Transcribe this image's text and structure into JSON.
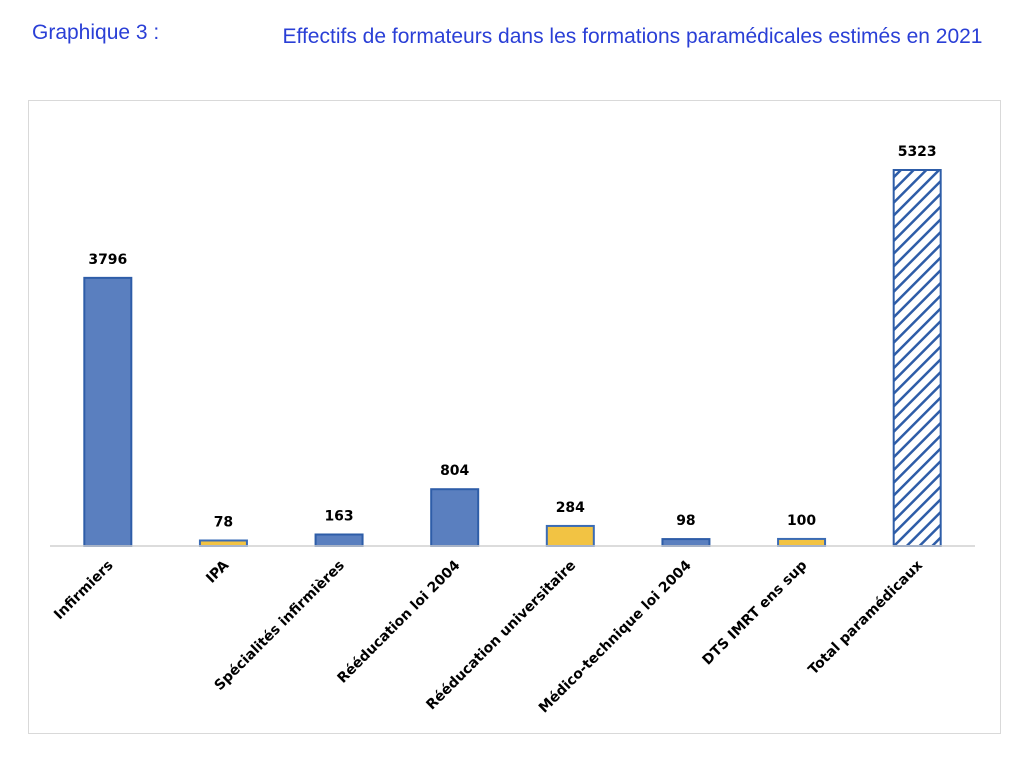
{
  "header": {
    "label": "Graphique 3 :",
    "title": "Effectifs de formateurs dans les formations paramédicales estimés en 2021"
  },
  "chart_data": {
    "type": "bar",
    "title": "Effectifs de formateurs dans les formations paramédicales estimés en 2021",
    "xlabel": "",
    "ylabel": "",
    "categories": [
      "Infirmiers",
      "IPA",
      "Spécialités infirmières",
      "Rééducation loi 2004",
      "Rééducation universitaire",
      "Médico-technique loi 2004",
      "DTS IMRT ens sup",
      "Total paramédicaux"
    ],
    "values": [
      3796,
      78,
      163,
      804,
      284,
      98,
      100,
      5323
    ],
    "bar_styles": [
      "blue",
      "yellow",
      "blue",
      "blue",
      "yellow",
      "blue",
      "yellow",
      "hatched"
    ],
    "colors": {
      "blue": "#5a7fbf",
      "blue_border": "#2e5da8",
      "yellow": "#f2c343",
      "yellow_border": "#3a6bb5",
      "hatch": "#2e5da8",
      "title": "#2a3fd6"
    },
    "ylim": [
      0,
      5600
    ],
    "grid": false,
    "legend": "none",
    "data_labels": true
  }
}
